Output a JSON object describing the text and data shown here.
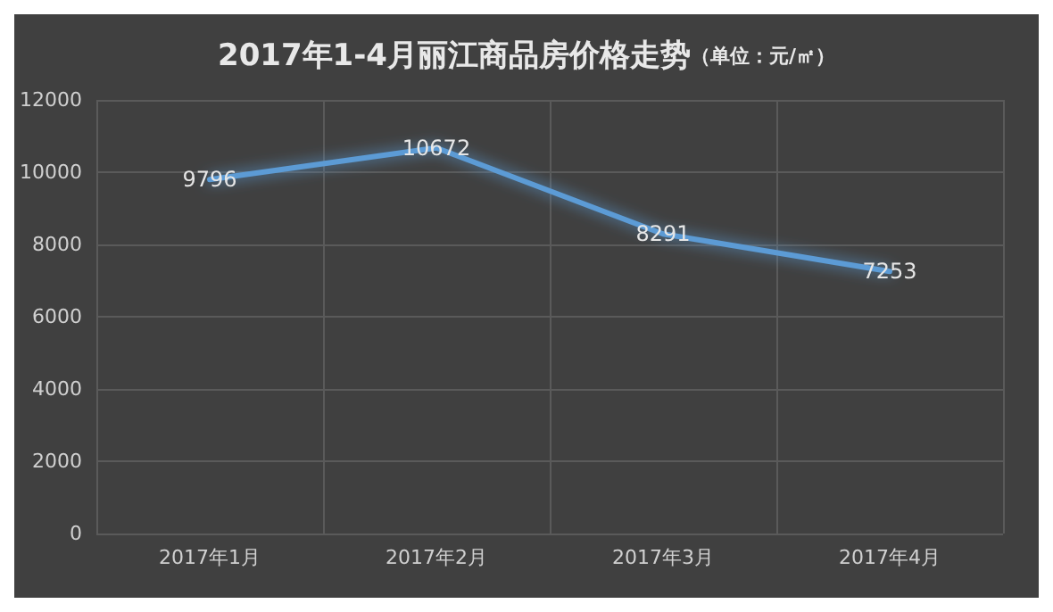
{
  "chart_data": {
    "type": "line",
    "title": "2017年1-4月丽江商品房价格走势",
    "subtitle": "（单位：元/㎡）",
    "categories": [
      "2017年1月",
      "2017年2月",
      "2017年3月",
      "2017年4月"
    ],
    "series": [
      {
        "color": "#5b9bd5",
        "values": [
          9796,
          10672,
          8291,
          7253
        ]
      }
    ],
    "ylim": [
      0,
      12000
    ],
    "yticks": [
      0,
      2000,
      4000,
      6000,
      8000,
      10000,
      12000
    ],
    "grid": true,
    "data_labels": true,
    "marker": "none",
    "line_style": "solid"
  }
}
